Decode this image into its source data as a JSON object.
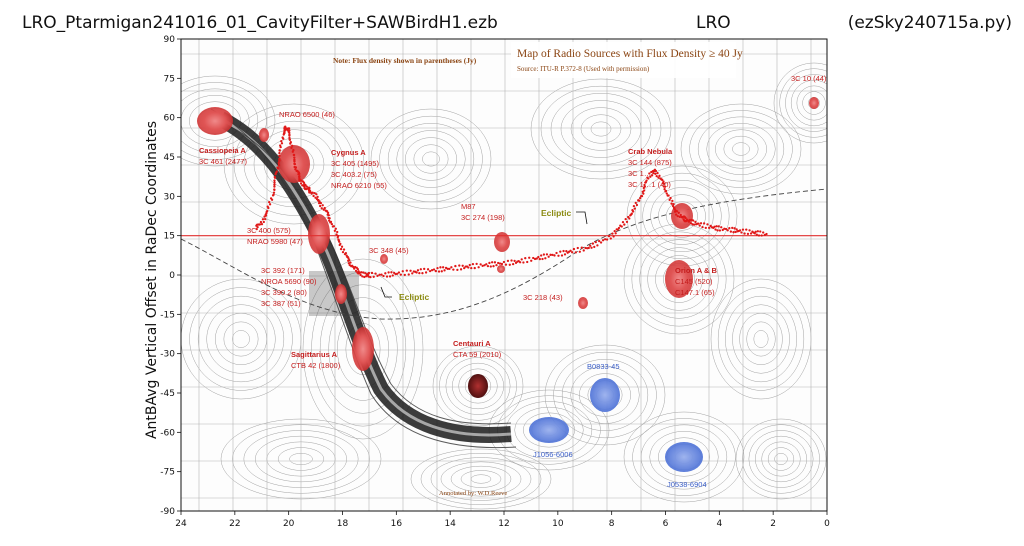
{
  "header": {
    "left": "LRO_Ptarmigan241016_01_CavityFilter+SAWBirdH1.ezb",
    "center": "LRO",
    "right": "(ezSky240715a.py)"
  },
  "chart_data": {
    "type": "scatter",
    "xlabel": "",
    "ylabel": "AntBAvg Vertical Offset in RaDec Coordinates",
    "xlim": [
      24,
      0
    ],
    "ylim": [
      -90,
      90
    ],
    "xticks": [
      "24",
      "22",
      "20",
      "18",
      "16",
      "14",
      "12",
      "10",
      "8",
      "6",
      "4",
      "2",
      "0"
    ],
    "yticks": [
      "90",
      "75",
      "60",
      "45",
      "30",
      "15",
      "0",
      "-15",
      "-30",
      "-45",
      "-60",
      "-75",
      "-90"
    ],
    "hline": {
      "y": 15,
      "color": "#e03030"
    },
    "grid": true,
    "background_map": {
      "title": "Map of Radio Sources with Flux Density ≥ 40 Jy",
      "source": "Source: ITU-R P.372-8 (Used with permission)",
      "note": "Note: Flux density shown in parentheses (Jy)",
      "credit": "Annotated by: W.D.Reeve",
      "ecliptic_labels": [
        "Ecliptic",
        "Ecliptic"
      ],
      "red_labels": [
        {
          "lines": [
            "Cassiopeia A",
            "3C 461 (2477)"
          ],
          "bold_first": true
        },
        {
          "lines": [
            "NRAO 6500 (46)"
          ]
        },
        {
          "lines": [
            "Cygnus A",
            "3C 405 (1495)",
            "3C 403.2 (75)",
            "NRAO 6210 (55)"
          ],
          "bold_first": true
        },
        {
          "lines": [
            "3C 400 (575)",
            "NRAO 5980 (47)"
          ]
        },
        {
          "lines": [
            "3C 392 (171)",
            "NROA 5690 (90)",
            "3C 390.2 (80)",
            "3C 387  (51)"
          ]
        },
        {
          "lines": [
            "Sagittarius A",
            "CTB 42 (1800)"
          ],
          "bold_first": true
        },
        {
          "lines": [
            "3C 348 (45)"
          ]
        },
        {
          "lines": [
            "M87",
            "3C 274 (198)"
          ]
        },
        {
          "lines": [
            "Centauri A",
            "CTA 59 (2010)"
          ],
          "bold_first": true
        },
        {
          "lines": [
            "3C 218 (43)"
          ]
        },
        {
          "lines": [
            "Crab Nebula",
            "3C 144 (875)",
            "3C 1…",
            "3C 1…1 (40)"
          ],
          "bold_first": true
        },
        {
          "lines": [
            "Orion A & B",
            "C145 (520)",
            "C147.1 (65)"
          ],
          "bold_first": true
        },
        {
          "lines": [
            "3C 10 (44)"
          ]
        }
      ],
      "blue_labels": [
        "B0833-45",
        "J1056-6006",
        "J0538-6904"
      ]
    },
    "series": [
      {
        "color": "#e01818",
        "x": [
          21.2,
          21.0,
          20.8,
          20.6,
          20.5,
          20.4,
          20.3,
          20.2,
          20.1,
          20.0,
          19.9,
          19.8,
          19.7,
          19.6,
          19.5,
          19.4,
          19.3,
          19.2,
          19.0,
          18.8,
          18.6,
          18.4,
          18.2,
          18.0,
          17.8,
          17.6,
          17.4,
          17.2,
          17.0,
          16.5,
          16.0,
          15.5,
          15.0,
          14.5,
          14.0,
          13.5,
          13.0,
          12.5,
          12.0,
          11.5,
          11.0,
          10.5,
          10.0,
          9.5,
          9.0,
          8.5,
          8.0,
          7.6,
          7.3,
          7.0,
          6.8,
          6.6,
          6.4,
          6.2,
          6.0,
          5.8,
          5.6,
          5.4,
          5.2,
          5.0,
          4.6,
          4.2,
          3.8,
          3.4,
          3.0,
          2.6,
          2.2
        ],
        "y": [
          18,
          20,
          24,
          30,
          36,
          42,
          48,
          54,
          56,
          55,
          50,
          44,
          40,
          37,
          35,
          34,
          33,
          32,
          30,
          27,
          24,
          20,
          15,
          10,
          6,
          3,
          1,
          0,
          0,
          0,
          0.5,
          1,
          1.5,
          2,
          2.5,
          3,
          3.5,
          4,
          4.5,
          5,
          6,
          7,
          8,
          9,
          10,
          12,
          15,
          19,
          23,
          28,
          33,
          38,
          40,
          37,
          33,
          28,
          24,
          22,
          21,
          20,
          19,
          18,
          17.5,
          17,
          16.5,
          16,
          15.5
        ]
      }
    ]
  }
}
